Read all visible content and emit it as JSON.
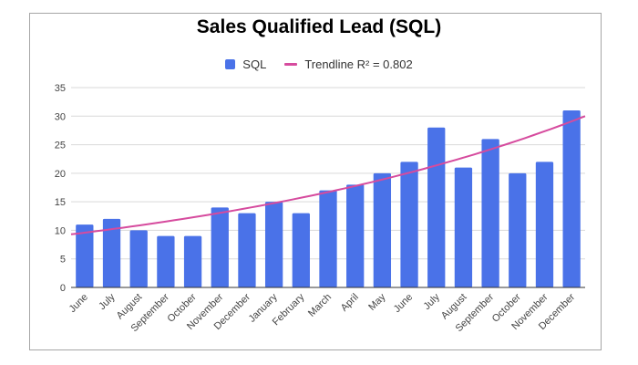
{
  "chart_data": {
    "type": "bar",
    "title": "Sales Qualified Lead (SQL)",
    "xlabel": "",
    "ylabel": "",
    "categories": [
      "June",
      "July",
      "August",
      "September",
      "October",
      "November",
      "December",
      "January",
      "February",
      "March",
      "April",
      "May",
      "June",
      "July",
      "August",
      "September",
      "October",
      "November",
      "December"
    ],
    "series": [
      {
        "name": "SQL",
        "values": [
          11,
          12,
          10,
          9,
          9,
          14,
          13,
          15,
          13,
          17,
          18,
          20,
          22,
          28,
          21,
          26,
          20,
          22,
          31
        ]
      }
    ],
    "trendline": {
      "label": "Trendline R² = 0.802",
      "type": "exponential",
      "start": 9.3,
      "end": 30.0
    },
    "ylim": [
      0,
      35
    ],
    "yticks": [
      0,
      5,
      10,
      15,
      20,
      25,
      30,
      35
    ],
    "grid": true,
    "legend_position": "top"
  },
  "colors": {
    "bar": "#4a72e8",
    "trendline": "#d64b9e",
    "grid": "#d9d9d9",
    "axis": "#333333"
  }
}
